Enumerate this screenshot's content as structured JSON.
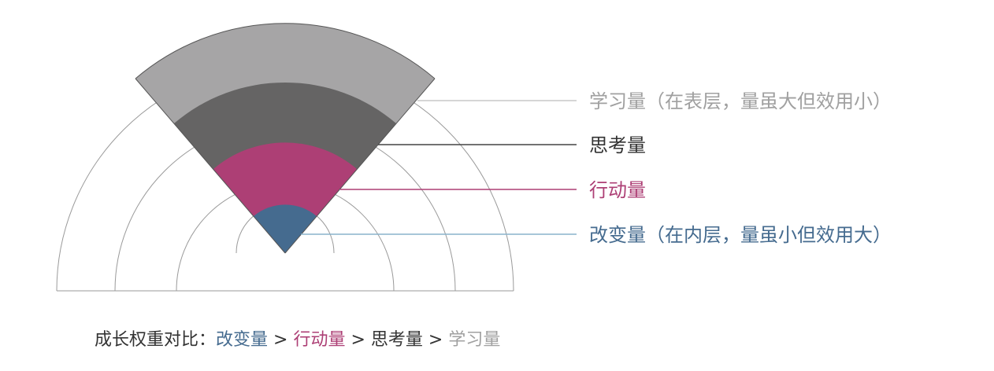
{
  "colors": {
    "learning": "#a6a5a6",
    "thinking": "#656464",
    "action": "#ad3f75",
    "change": "#456b8f",
    "outline": "#9a9a9a",
    "label_learning": "#a0a0a0",
    "label_thinking": "#333333",
    "label_action": "#ad3f75",
    "label_change": "#456b8f",
    "line_change": "#8ab3cc"
  },
  "layers": [
    {
      "id": "change",
      "label": "改变量（在内层，量虽小但效用大）",
      "color_key": "change"
    },
    {
      "id": "action",
      "label": "行动量",
      "color_key": "action"
    },
    {
      "id": "thinking",
      "label": "思考量",
      "color_key": "thinking"
    },
    {
      "id": "learning",
      "label": "学习量（在表层，量虽大但效用小）",
      "color_key": "learning"
    }
  ],
  "summary": {
    "prefix": "成长权重对比：",
    "change": "改变量",
    "action": "行动量",
    "thinking": "思考量",
    "learning": "学习量",
    "sep": " > "
  }
}
